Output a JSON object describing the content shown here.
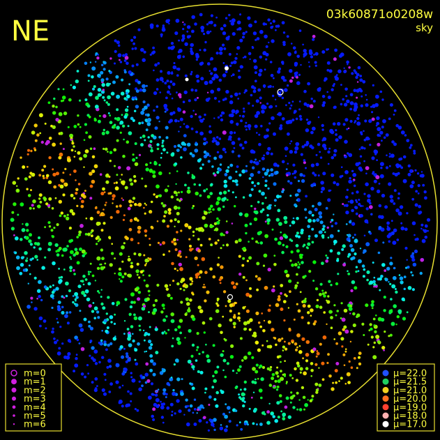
{
  "header": {
    "direction": "NE",
    "id": "03k60871o0208w",
    "mode": "sky"
  },
  "magnitude_legend": [
    "m=0",
    "m=1",
    "m=2",
    "m=3",
    "m=4",
    "m=5",
    "m=6"
  ],
  "mu_legend": [
    "μ=22.0",
    "μ=21.5",
    "μ=21.0",
    "μ=20.0",
    "μ=19.0",
    "μ=18.0",
    "μ=17.0"
  ]
}
